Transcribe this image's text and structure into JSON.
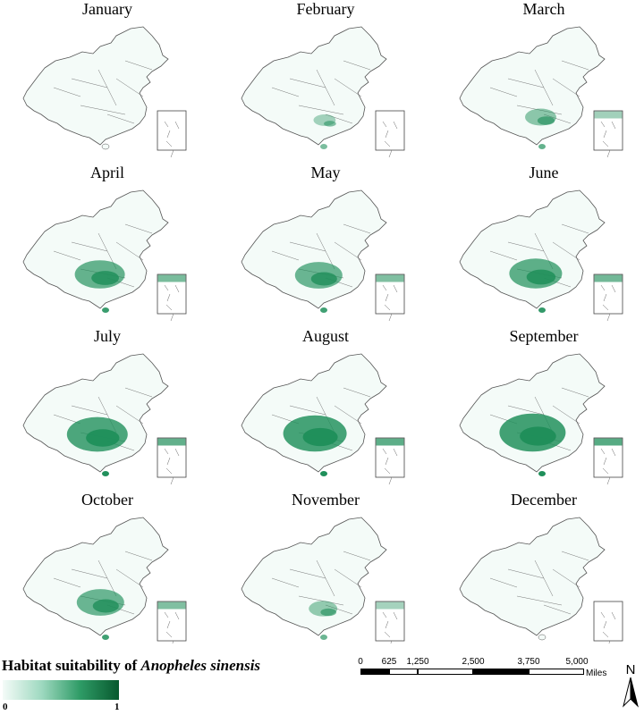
{
  "panels": [
    {
      "month": "January",
      "level": 0.0
    },
    {
      "month": "February",
      "level": 0.08
    },
    {
      "month": "March",
      "level": 0.25
    },
    {
      "month": "April",
      "level": 0.6
    },
    {
      "month": "May",
      "level": 0.55
    },
    {
      "month": "June",
      "level": 0.65
    },
    {
      "month": "July",
      "level": 0.8
    },
    {
      "month": "August",
      "level": 0.85
    },
    {
      "month": "September",
      "level": 0.9
    },
    {
      "month": "October",
      "level": 0.55
    },
    {
      "month": "November",
      "level": 0.2
    },
    {
      "month": "December",
      "level": 0.0
    }
  ],
  "legend": {
    "title_prefix": "Habitat suitability of ",
    "title_species": "Anopheles sinensis",
    "min_label": "0",
    "max_label": "1",
    "colors": [
      "#f4fbf8",
      "#9fd9c0",
      "#2e9b66",
      "#08592e"
    ]
  },
  "scale_bar": {
    "labels": [
      "0",
      "625",
      "1,250",
      "2,500",
      "3,750",
      "5,000"
    ],
    "unit": "Miles"
  },
  "north_arrow": {
    "label": "N"
  },
  "colors": {
    "outline": "#555555",
    "fill_light": "#f4fbf8",
    "fill_dark": "#1f8f5a"
  }
}
